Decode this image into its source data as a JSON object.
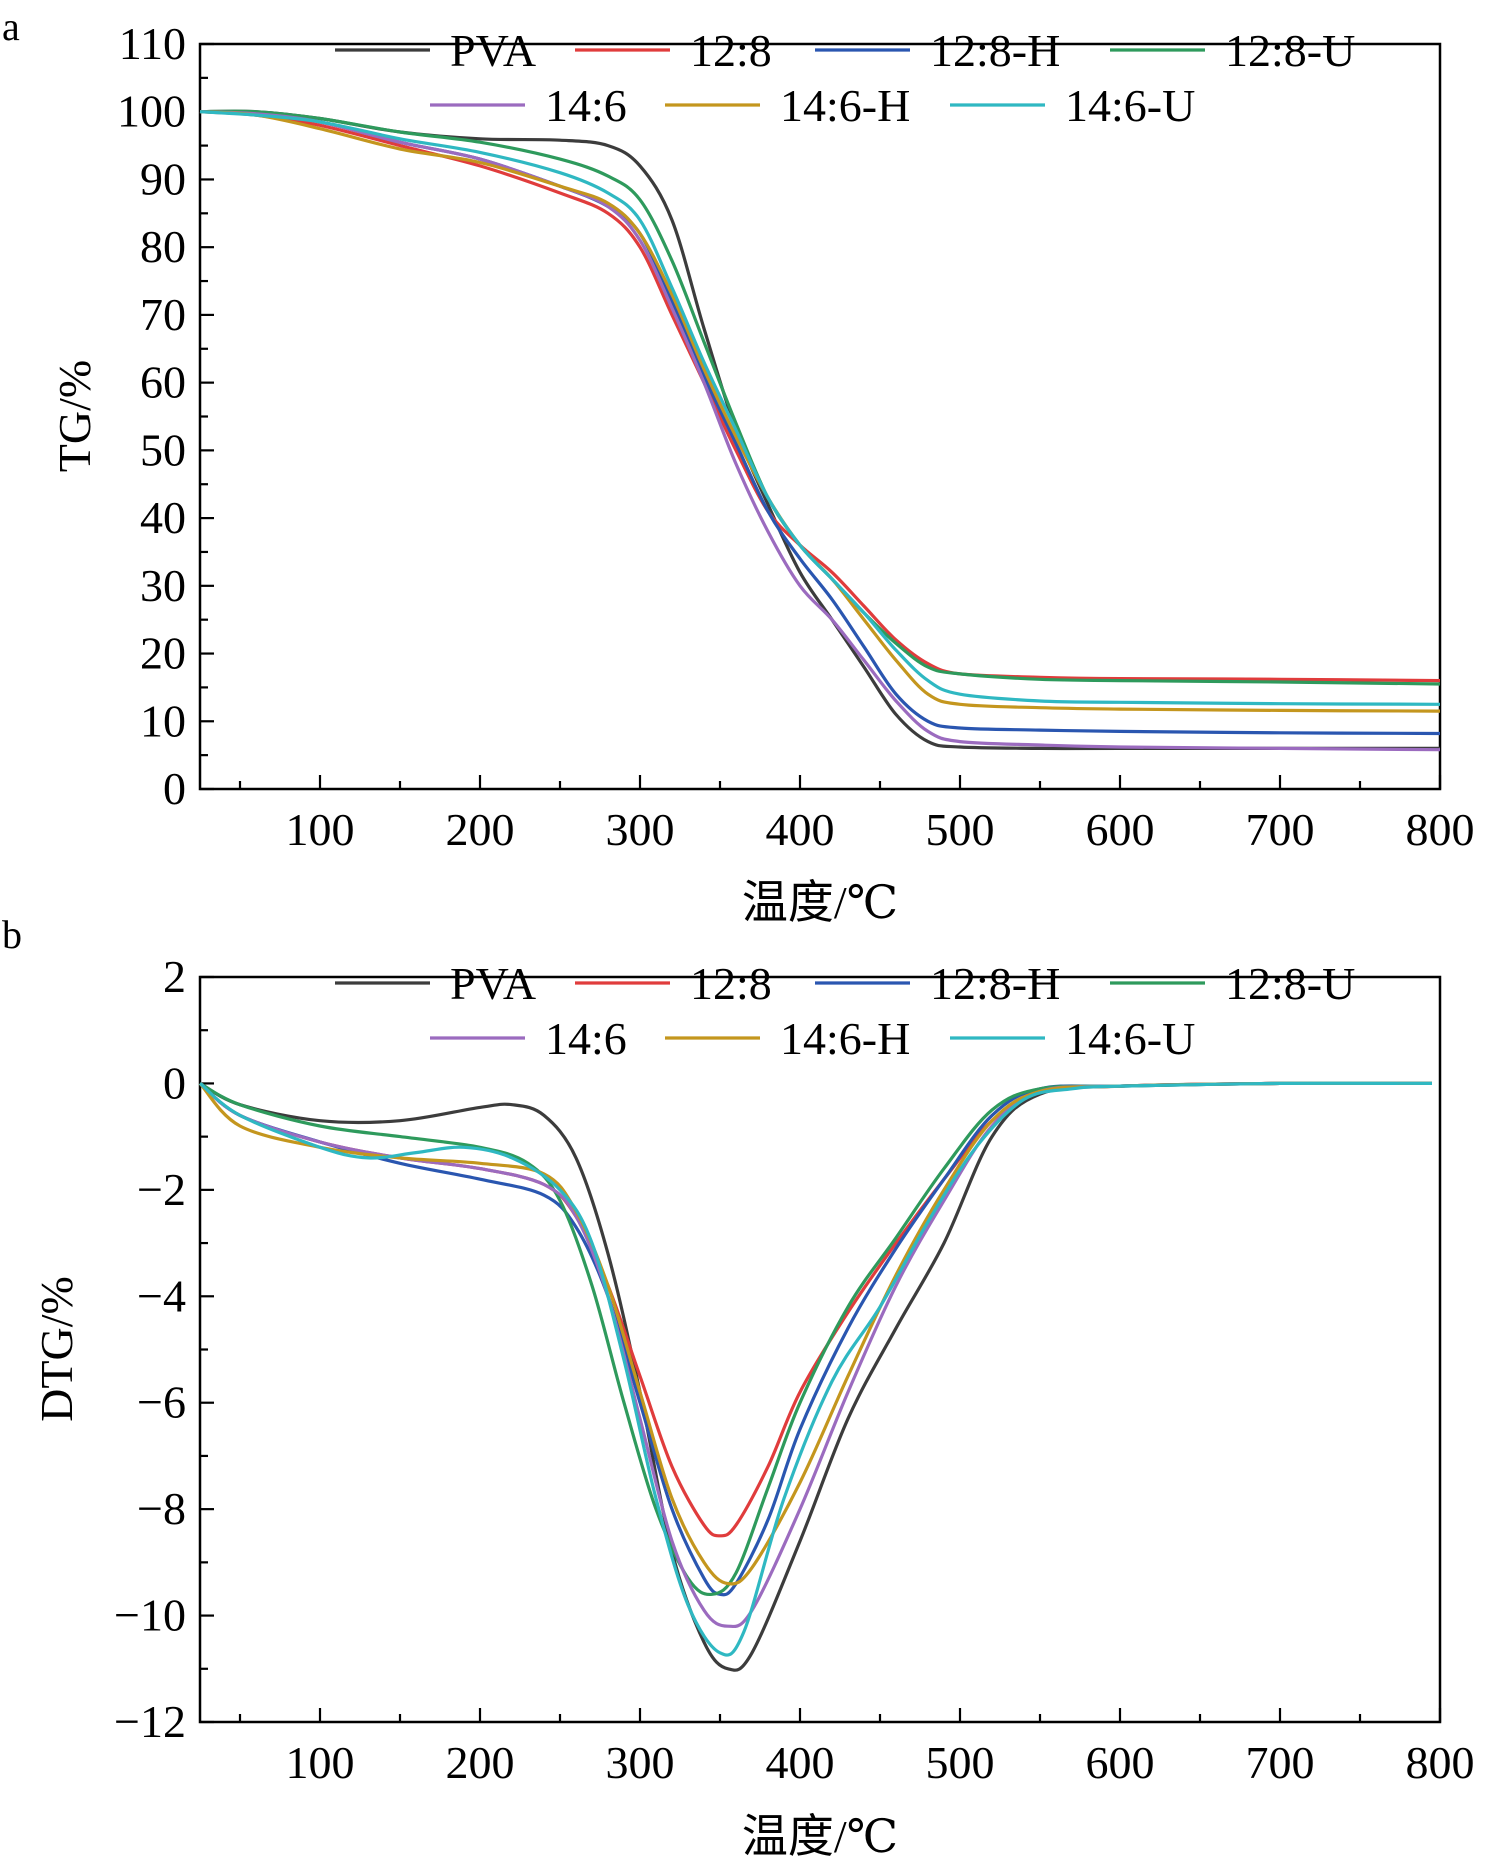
{
  "chart_data": [
    {
      "panel_label": "a",
      "type": "line",
      "title": "",
      "xlabel": "温度/℃",
      "ylabel": "TG/%",
      "xlim": [
        25,
        800
      ],
      "ylim": [
        0,
        110
      ],
      "xticks": [
        100,
        200,
        300,
        400,
        500,
        600,
        700,
        800
      ],
      "yticks": [
        0,
        10,
        20,
        30,
        40,
        50,
        60,
        70,
        80,
        90,
        100,
        110
      ],
      "grid": false,
      "legend_placement": "top",
      "series": [
        {
          "name": "PVA",
          "color": "#3c3c3c",
          "x": [
            25,
            60,
            100,
            150,
            200,
            250,
            280,
            300,
            320,
            340,
            360,
            380,
            400,
            420,
            440,
            460,
            480,
            500,
            550,
            600,
            700,
            800
          ],
          "y": [
            100,
            100,
            99,
            97,
            96,
            95.8,
            95,
            92,
            84,
            68,
            53,
            42,
            32,
            25,
            18,
            11,
            7,
            6.2,
            6,
            6,
            6,
            6
          ]
        },
        {
          "name": "12:8",
          "color": "#e03c3c",
          "x": [
            25,
            60,
            100,
            150,
            200,
            250,
            280,
            300,
            320,
            340,
            360,
            380,
            400,
            420,
            440,
            460,
            480,
            500,
            550,
            600,
            700,
            800
          ],
          "y": [
            100,
            99.5,
            98,
            95,
            92,
            88,
            85,
            80,
            70,
            60,
            50,
            41,
            36,
            32,
            27,
            22,
            18.5,
            17,
            16.5,
            16.3,
            16.2,
            16
          ]
        },
        {
          "name": "12:8-H",
          "color": "#2a56b0",
          "x": [
            25,
            60,
            100,
            150,
            200,
            250,
            280,
            300,
            320,
            340,
            360,
            380,
            400,
            420,
            440,
            460,
            480,
            500,
            550,
            600,
            700,
            800
          ],
          "y": [
            100,
            99.7,
            98.5,
            95.5,
            93,
            89,
            86,
            82,
            72,
            61,
            51,
            41,
            34,
            28,
            21,
            14,
            10,
            9,
            8.7,
            8.5,
            8.3,
            8.2
          ]
        },
        {
          "name": "12:8-U",
          "color": "#2e9a5c",
          "x": [
            25,
            60,
            100,
            150,
            200,
            250,
            280,
            300,
            320,
            340,
            360,
            380,
            400,
            420,
            440,
            460,
            480,
            500,
            550,
            600,
            700,
            800
          ],
          "y": [
            100,
            100,
            99,
            97,
            95.5,
            93,
            90.5,
            87,
            78,
            66,
            54,
            43,
            36,
            31,
            26,
            21.5,
            18,
            17,
            16.2,
            16,
            15.8,
            15.5
          ]
        },
        {
          "name": "14:6",
          "color": "#9b6bbf",
          "x": [
            25,
            60,
            100,
            150,
            200,
            250,
            280,
            300,
            320,
            340,
            360,
            380,
            400,
            420,
            440,
            460,
            480,
            500,
            550,
            600,
            700,
            800
          ],
          "y": [
            100,
            99.7,
            98.5,
            95.5,
            93,
            89,
            86,
            81,
            71,
            60,
            48,
            38,
            30,
            25,
            19,
            13,
            8.5,
            7,
            6.5,
            6.2,
            6,
            5.8
          ]
        },
        {
          "name": "14:6-H",
          "color": "#c4961e",
          "x": [
            25,
            60,
            100,
            150,
            200,
            250,
            280,
            300,
            320,
            340,
            360,
            380,
            400,
            420,
            440,
            460,
            480,
            500,
            550,
            600,
            700,
            800
          ],
          "y": [
            100,
            99.5,
            97.5,
            94.5,
            92.5,
            89,
            86.5,
            82,
            73,
            62,
            52,
            43,
            36,
            31,
            25,
            19,
            14,
            12.5,
            12,
            11.8,
            11.6,
            11.5
          ]
        },
        {
          "name": "14:6-U",
          "color": "#2fb8c2",
          "x": [
            25,
            60,
            100,
            150,
            200,
            250,
            280,
            300,
            320,
            340,
            360,
            380,
            400,
            420,
            440,
            460,
            480,
            500,
            550,
            600,
            700,
            800
          ],
          "y": [
            100,
            99.5,
            98.5,
            96,
            94,
            91,
            88,
            84,
            74,
            63,
            53,
            43,
            36,
            31,
            26,
            20.5,
            16,
            14,
            13,
            12.8,
            12.6,
            12.5
          ]
        }
      ]
    },
    {
      "panel_label": "b",
      "type": "line",
      "title": "",
      "xlabel": "温度/℃",
      "ylabel": "DTG/%",
      "xlim": [
        25,
        800
      ],
      "ylim": [
        -12,
        2
      ],
      "xticks": [
        100,
        200,
        300,
        400,
        500,
        600,
        700,
        800
      ],
      "yticks": [
        -12,
        -10,
        -8,
        -6,
        -4,
        -2,
        0,
        2
      ],
      "ytick_labels": [
        "−12",
        "−10",
        "−8",
        "−6",
        "−4",
        "−2",
        "0",
        "2"
      ],
      "grid": false,
      "legend_placement": "top",
      "series": [
        {
          "name": "PVA",
          "color": "#3c3c3c",
          "x": [
            25,
            50,
            100,
            150,
            200,
            220,
            240,
            260,
            280,
            300,
            320,
            340,
            355,
            370,
            400,
            430,
            460,
            490,
            520,
            550,
            600,
            700,
            795
          ],
          "y": [
            0,
            -0.4,
            -0.7,
            -0.7,
            -0.45,
            -0.4,
            -0.6,
            -1.4,
            -3.2,
            -5.8,
            -8.8,
            -10.5,
            -11.0,
            -10.7,
            -8.6,
            -6.3,
            -4.6,
            -3.0,
            -1.0,
            -0.2,
            -0.05,
            0,
            0
          ]
        },
        {
          "name": "12:8",
          "color": "#e03c3c",
          "x": [
            25,
            50,
            100,
            150,
            200,
            240,
            260,
            280,
            300,
            320,
            340,
            350,
            360,
            380,
            400,
            430,
            460,
            490,
            520,
            550,
            600,
            700,
            795
          ],
          "y": [
            0,
            -0.6,
            -1.1,
            -1.4,
            -1.6,
            -1.9,
            -2.5,
            -3.8,
            -5.5,
            -7.2,
            -8.3,
            -8.5,
            -8.3,
            -7.2,
            -5.8,
            -4.3,
            -3.0,
            -1.8,
            -0.7,
            -0.15,
            -0.05,
            0,
            0
          ]
        },
        {
          "name": "12:8-H",
          "color": "#2a56b0",
          "x": [
            25,
            50,
            100,
            150,
            200,
            240,
            260,
            280,
            300,
            320,
            340,
            350,
            360,
            380,
            400,
            430,
            460,
            490,
            520,
            550,
            600,
            700,
            795
          ],
          "y": [
            0,
            -0.6,
            -1.1,
            -1.5,
            -1.8,
            -2.1,
            -2.7,
            -4.0,
            -6.0,
            -8.0,
            -9.3,
            -9.6,
            -9.4,
            -8.2,
            -6.5,
            -4.6,
            -3.1,
            -1.8,
            -0.6,
            -0.1,
            -0.05,
            0,
            0
          ]
        },
        {
          "name": "12:8-U",
          "color": "#2e9a5c",
          "x": [
            25,
            50,
            100,
            150,
            200,
            230,
            250,
            270,
            290,
            310,
            330,
            345,
            360,
            380,
            400,
            430,
            460,
            490,
            520,
            550,
            600,
            700,
            795
          ],
          "y": [
            0,
            -0.4,
            -0.8,
            -1.0,
            -1.2,
            -1.5,
            -2.2,
            -3.8,
            -6.0,
            -8.0,
            -9.3,
            -9.6,
            -9.2,
            -7.6,
            -6.0,
            -4.2,
            -2.9,
            -1.6,
            -0.5,
            -0.1,
            -0.05,
            0,
            0
          ]
        },
        {
          "name": "14:6",
          "color": "#9b6bbf",
          "x": [
            25,
            50,
            100,
            150,
            200,
            240,
            260,
            280,
            300,
            320,
            340,
            355,
            370,
            400,
            430,
            460,
            490,
            520,
            550,
            600,
            700,
            795
          ],
          "y": [
            0,
            -0.6,
            -1.1,
            -1.4,
            -1.6,
            -1.9,
            -2.5,
            -4.0,
            -6.3,
            -8.6,
            -9.9,
            -10.2,
            -9.9,
            -8.0,
            -5.8,
            -3.8,
            -2.2,
            -0.8,
            -0.15,
            -0.05,
            0,
            0
          ]
        },
        {
          "name": "14:6-H",
          "color": "#c4961e",
          "x": [
            25,
            50,
            100,
            150,
            200,
            240,
            260,
            280,
            300,
            320,
            340,
            355,
            370,
            400,
            430,
            460,
            490,
            520,
            550,
            600,
            700,
            795
          ],
          "y": [
            0,
            -0.8,
            -1.2,
            -1.4,
            -1.5,
            -1.7,
            -2.4,
            -3.8,
            -5.8,
            -7.8,
            -9.0,
            -9.4,
            -9.1,
            -7.5,
            -5.5,
            -3.6,
            -2.0,
            -0.7,
            -0.15,
            -0.05,
            0,
            0
          ]
        },
        {
          "name": "14:6-U",
          "color": "#2fb8c2",
          "x": [
            25,
            50,
            100,
            130,
            160,
            190,
            220,
            250,
            270,
            290,
            310,
            330,
            350,
            365,
            390,
            420,
            450,
            480,
            510,
            540,
            570,
            600,
            700,
            795
          ],
          "y": [
            0,
            -0.6,
            -1.2,
            -1.4,
            -1.3,
            -1.2,
            -1.4,
            -2.0,
            -3.0,
            -5.2,
            -7.8,
            -9.8,
            -10.7,
            -10.3,
            -7.8,
            -5.6,
            -4.2,
            -2.6,
            -1.2,
            -0.3,
            -0.1,
            -0.05,
            0,
            0
          ]
        }
      ]
    }
  ]
}
